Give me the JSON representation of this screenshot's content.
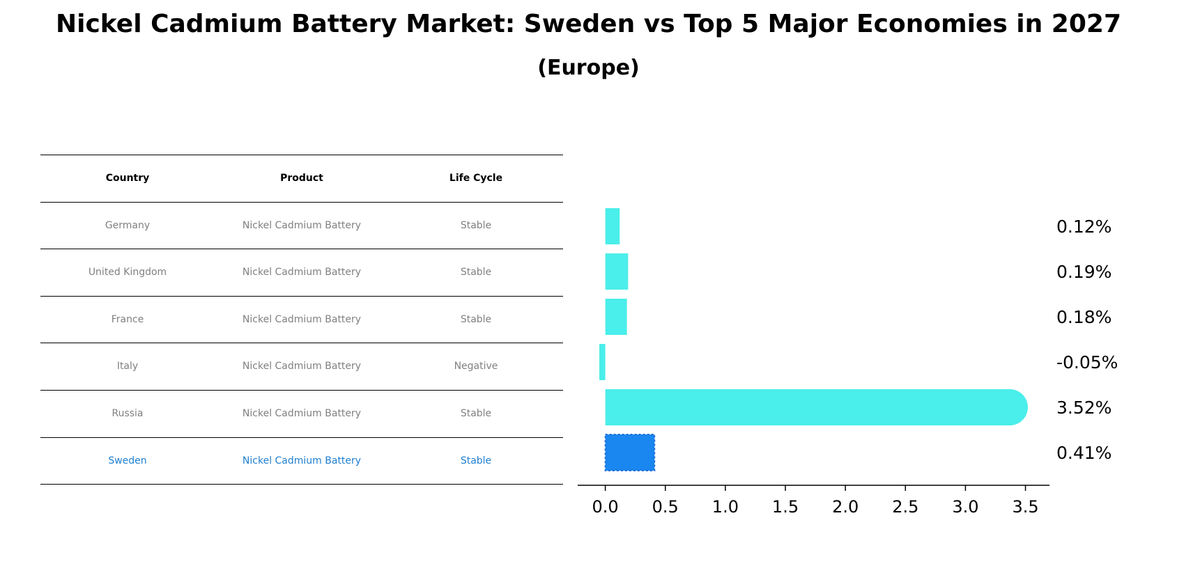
{
  "title": "Nickel Cadmium Battery Market: Sweden vs Top 5 Major Economies in 2027",
  "subtitle": "(Europe)",
  "table": {
    "headers": [
      "Country",
      "Product",
      "Life Cycle"
    ],
    "rows": [
      [
        "Germany",
        "Nickel Cadmium Battery",
        "Stable"
      ],
      [
        "United Kingdom",
        "Nickel Cadmium Battery",
        "Stable"
      ],
      [
        "France",
        "Nickel Cadmium Battery",
        "Stable"
      ],
      [
        "Italy",
        "Nickel Cadmium Battery",
        "Negative"
      ],
      [
        "Russia",
        "Nickel Cadmium Battery",
        "Stable"
      ],
      [
        "Sweden",
        "Nickel Cadmium Battery",
        "Stable"
      ]
    ],
    "highlight_row": 5,
    "colors": {
      "text": "#808080",
      "highlight": "#1f7fd0"
    }
  },
  "chart_data": {
    "type": "bar",
    "orientation": "horizontal",
    "categories": [
      "Germany",
      "United Kingdom",
      "France",
      "Italy",
      "Russia",
      "Sweden"
    ],
    "values": [
      0.12,
      0.19,
      0.18,
      -0.05,
      3.52,
      0.41
    ],
    "value_labels": [
      "0.12%",
      "0.19%",
      "0.18%",
      "-0.05%",
      "3.52%",
      "0.41%"
    ],
    "xticks": [
      "0.0",
      "0.5",
      "1.0",
      "1.5",
      "2.0",
      "2.5",
      "3.0",
      "3.5"
    ],
    "xlim": [
      -0.23,
      3.7
    ],
    "grid": false,
    "colors": {
      "bar": "#4aeeea",
      "highlight": "#1a86f0"
    },
    "highlight_index": 5
  }
}
